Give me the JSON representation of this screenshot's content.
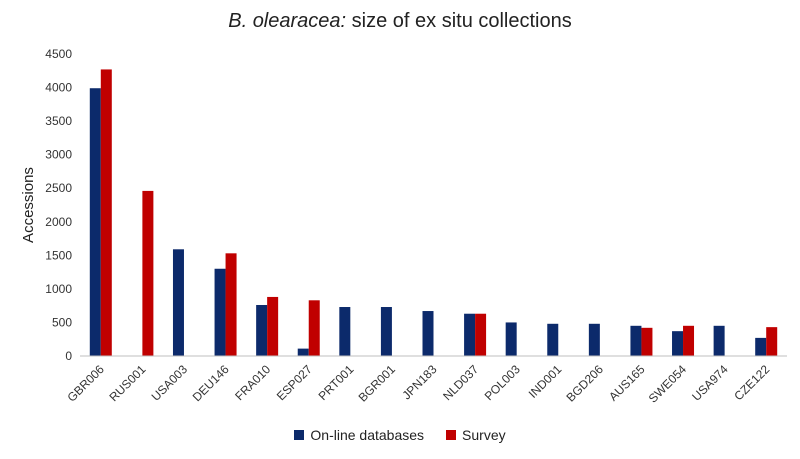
{
  "chart_data": {
    "type": "bar",
    "title_italic": "B. olearacea:",
    "title_rest": " size of ex situ collections",
    "ylabel": "Accessions",
    "xlabel": "",
    "ylim": [
      0,
      4500
    ],
    "yticks": [
      0,
      500,
      1000,
      1500,
      2000,
      2500,
      3000,
      3500,
      4000,
      4500
    ],
    "grid": false,
    "legend_position": "bottom",
    "categories": [
      "GBR006",
      "RUS001",
      "USA003",
      "DEU146",
      "FRA010",
      "ESP027",
      "PRT001",
      "BGR001",
      "JPN183",
      "NLD037",
      "POL003",
      "IND001",
      "BGD206",
      "AUS165",
      "SWE054",
      "USA974",
      "CZE122"
    ],
    "series": [
      {
        "name": "On-line databases",
        "color": "#0c2a6b",
        "values": [
          3990,
          0,
          1590,
          1300,
          760,
          110,
          730,
          730,
          670,
          630,
          500,
          480,
          480,
          450,
          370,
          450,
          270
        ]
      },
      {
        "name": "Survey",
        "color": "#c00000",
        "values": [
          4270,
          2460,
          0,
          1530,
          880,
          830,
          0,
          0,
          0,
          630,
          0,
          0,
          0,
          420,
          450,
          0,
          430
        ]
      }
    ]
  }
}
